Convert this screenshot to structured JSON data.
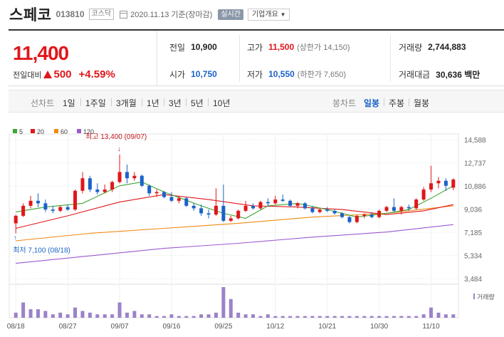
{
  "header": {
    "name": "스페코",
    "code": "013810",
    "market": "코스닥",
    "date": "2020.11.13 기준(장마감)",
    "realtime_label": "실시간",
    "overview_label": "기업개요"
  },
  "quote": {
    "price": "11,400",
    "change_label": "전일대비",
    "change_amount": "500",
    "change_percent": "+4.59%",
    "prev_label": "전일",
    "prev": "10,900",
    "open_label": "시가",
    "open": "10,750",
    "high_label": "고가",
    "high": "11,500",
    "upper_limit": "(상한가 14,150)",
    "low_label": "저가",
    "low": "10,550",
    "lower_limit": "(하한가 7,650)",
    "volume_label": "거래량",
    "volume": "2,744,883",
    "value_label": "거래대금",
    "value": "30,636 백만"
  },
  "periods": {
    "line_label": "선차트",
    "line_items": [
      "1일",
      "1주일",
      "3개월",
      "1년",
      "3년",
      "5년",
      "10년"
    ],
    "candle_label": "봉차트",
    "candle_items": [
      "일봉",
      "주봉",
      "월봉"
    ],
    "candle_active": "일봉"
  },
  "colors": {
    "up": "#e0171b",
    "down": "#1a62c8",
    "ma5": "#3fa535",
    "ma20": "#e0171b",
    "ma60": "#f08a12",
    "ma120": "#9b59d0",
    "volume": "#9b82c8"
  },
  "chart_data": {
    "type": "candlestick",
    "legend": [
      "5",
      "20",
      "60",
      "120"
    ],
    "y_ticks": [
      "14,588",
      "12,737",
      "10,886",
      "9,036",
      "7,185",
      "5,334",
      "3,484"
    ],
    "ylim": [
      3484,
      14588
    ],
    "x_labels": [
      "08/18",
      "08/27",
      "09/07",
      "09/16",
      "09/25",
      "10/12",
      "10/21",
      "10/30",
      "11/10"
    ],
    "x_label_index": [
      0,
      7,
      14,
      21,
      28,
      35,
      42,
      49,
      56
    ],
    "high_annotation": "최고 13,400 (09/07)",
    "high_index": 14,
    "high_value": 13400,
    "low_annotation": "최저 7,100 (08/18)",
    "low_index": 0,
    "low_value": 7100,
    "volume_label": "거래량",
    "candles": [
      {
        "o": 7900,
        "h": 8600,
        "l": 7100,
        "c": 8500
      },
      {
        "o": 8500,
        "h": 9500,
        "l": 8400,
        "c": 9300
      },
      {
        "o": 9300,
        "h": 10100,
        "l": 9100,
        "c": 9700
      },
      {
        "o": 9700,
        "h": 10300,
        "l": 9200,
        "c": 9500
      },
      {
        "o": 9500,
        "h": 9800,
        "l": 8800,
        "c": 9000
      },
      {
        "o": 9000,
        "h": 9300,
        "l": 8700,
        "c": 8900
      },
      {
        "o": 8900,
        "h": 9300,
        "l": 8800,
        "c": 9200
      },
      {
        "o": 9200,
        "h": 9400,
        "l": 8900,
        "c": 9000
      },
      {
        "o": 9000,
        "h": 10600,
        "l": 8900,
        "c": 10500
      },
      {
        "o": 10500,
        "h": 12000,
        "l": 10300,
        "c": 11500
      },
      {
        "o": 11500,
        "h": 11700,
        "l": 10400,
        "c": 10600
      },
      {
        "o": 10600,
        "h": 11100,
        "l": 10200,
        "c": 10400
      },
      {
        "o": 10400,
        "h": 11000,
        "l": 10300,
        "c": 10600
      },
      {
        "o": 10600,
        "h": 11300,
        "l": 10400,
        "c": 11200
      },
      {
        "o": 11200,
        "h": 13400,
        "l": 11100,
        "c": 12000
      },
      {
        "o": 12000,
        "h": 12600,
        "l": 11100,
        "c": 11500
      },
      {
        "o": 11500,
        "h": 12000,
        "l": 11300,
        "c": 11700
      },
      {
        "o": 11700,
        "h": 11800,
        "l": 10800,
        "c": 10900
      },
      {
        "o": 10900,
        "h": 11000,
        "l": 10100,
        "c": 10300
      },
      {
        "o": 10300,
        "h": 10600,
        "l": 10000,
        "c": 10400
      },
      {
        "o": 10400,
        "h": 10500,
        "l": 9900,
        "c": 10000
      },
      {
        "o": 10000,
        "h": 10400,
        "l": 9600,
        "c": 9700
      },
      {
        "o": 9700,
        "h": 10100,
        "l": 9500,
        "c": 9900
      },
      {
        "o": 9900,
        "h": 10000,
        "l": 9200,
        "c": 9300
      },
      {
        "o": 9300,
        "h": 9500,
        "l": 8900,
        "c": 9100
      },
      {
        "o": 9100,
        "h": 9400,
        "l": 8500,
        "c": 8700
      },
      {
        "o": 8700,
        "h": 9000,
        "l": 8300,
        "c": 8600
      },
      {
        "o": 8600,
        "h": 10700,
        "l": 8500,
        "c": 9300
      },
      {
        "o": 9300,
        "h": 11000,
        "l": 8000,
        "c": 8100
      },
      {
        "o": 8100,
        "h": 8500,
        "l": 8000,
        "c": 8300
      },
      {
        "o": 8300,
        "h": 9000,
        "l": 8200,
        "c": 8900
      },
      {
        "o": 8900,
        "h": 9700,
        "l": 8800,
        "c": 9300
      },
      {
        "o": 9300,
        "h": 9500,
        "l": 9000,
        "c": 9100
      },
      {
        "o": 9100,
        "h": 9700,
        "l": 9000,
        "c": 9600
      },
      {
        "o": 9600,
        "h": 9900,
        "l": 9300,
        "c": 9500
      },
      {
        "o": 9500,
        "h": 10100,
        "l": 9400,
        "c": 9800
      },
      {
        "o": 9800,
        "h": 10200,
        "l": 9600,
        "c": 9700
      },
      {
        "o": 9700,
        "h": 9800,
        "l": 9200,
        "c": 9300
      },
      {
        "o": 9300,
        "h": 9600,
        "l": 9100,
        "c": 9500
      },
      {
        "o": 9500,
        "h": 9600,
        "l": 9000,
        "c": 9100
      },
      {
        "o": 9100,
        "h": 9300,
        "l": 8700,
        "c": 8800
      },
      {
        "o": 8800,
        "h": 9100,
        "l": 8700,
        "c": 9000
      },
      {
        "o": 9000,
        "h": 9200,
        "l": 8800,
        "c": 8900
      },
      {
        "o": 8900,
        "h": 9000,
        "l": 8600,
        "c": 8700
      },
      {
        "o": 8700,
        "h": 8800,
        "l": 8300,
        "c": 8400
      },
      {
        "o": 8400,
        "h": 8500,
        "l": 7900,
        "c": 8000
      },
      {
        "o": 8000,
        "h": 8600,
        "l": 7900,
        "c": 8500
      },
      {
        "o": 8500,
        "h": 8700,
        "l": 8300,
        "c": 8600
      },
      {
        "o": 8600,
        "h": 8800,
        "l": 8300,
        "c": 8400
      },
      {
        "o": 8400,
        "h": 9000,
        "l": 8300,
        "c": 8900
      },
      {
        "o": 8900,
        "h": 9300,
        "l": 8800,
        "c": 9200
      },
      {
        "o": 9200,
        "h": 9900,
        "l": 8800,
        "c": 8900
      },
      {
        "o": 8900,
        "h": 9300,
        "l": 8600,
        "c": 9200
      },
      {
        "o": 9200,
        "h": 9400,
        "l": 8900,
        "c": 9100
      },
      {
        "o": 9100,
        "h": 9900,
        "l": 9000,
        "c": 9800
      },
      {
        "o": 9800,
        "h": 10800,
        "l": 9700,
        "c": 10600
      },
      {
        "o": 10600,
        "h": 12500,
        "l": 10400,
        "c": 11100
      },
      {
        "o": 11100,
        "h": 11600,
        "l": 10700,
        "c": 11300
      },
      {
        "o": 11300,
        "h": 11500,
        "l": 10500,
        "c": 10900
      },
      {
        "o": 10750,
        "h": 11500,
        "l": 10550,
        "c": 11400
      }
    ],
    "volume": [
      3,
      9,
      5,
      5,
      4,
      2,
      3,
      2,
      6,
      4,
      3,
      2,
      2,
      2,
      9,
      3,
      4,
      2,
      2,
      1,
      1,
      2,
      1,
      1,
      1,
      2,
      2,
      3,
      18,
      11,
      3,
      2,
      2,
      1,
      2,
      1,
      1,
      1,
      1,
      1,
      1,
      1,
      1,
      1,
      1,
      1,
      1,
      1,
      1,
      1,
      1,
      1,
      1,
      1,
      1,
      2,
      6,
      3,
      2,
      2
    ],
    "ma": {
      "ma5": {
        "start": 8800,
        "points": [
          [
            0,
            8800
          ],
          [
            4,
            9200
          ],
          [
            9,
            9500
          ],
          [
            14,
            10900
          ],
          [
            17,
            11200
          ],
          [
            20,
            10400
          ],
          [
            25,
            9300
          ],
          [
            28,
            8700
          ],
          [
            31,
            8300
          ],
          [
            34,
            9300
          ],
          [
            38,
            9500
          ],
          [
            42,
            9000
          ],
          [
            46,
            8400
          ],
          [
            50,
            8700
          ],
          [
            53,
            9000
          ],
          [
            56,
            9900
          ],
          [
            59,
            10900
          ]
        ]
      },
      "ma20": {
        "points": [
          [
            0,
            7500
          ],
          [
            7,
            8500
          ],
          [
            14,
            9600
          ],
          [
            20,
            10200
          ],
          [
            26,
            9800
          ],
          [
            32,
            9300
          ],
          [
            38,
            9200
          ],
          [
            44,
            9000
          ],
          [
            50,
            8600
          ],
          [
            55,
            8900
          ],
          [
            59,
            9400
          ]
        ]
      },
      "ma60": {
        "points": [
          [
            0,
            6500
          ],
          [
            10,
            7100
          ],
          [
            20,
            7500
          ],
          [
            30,
            7900
          ],
          [
            40,
            8400
          ],
          [
            50,
            8700
          ],
          [
            59,
            9300
          ]
        ]
      },
      "ma120": {
        "points": [
          [
            0,
            4700
          ],
          [
            10,
            5300
          ],
          [
            20,
            5900
          ],
          [
            30,
            6300
          ],
          [
            40,
            6800
          ],
          [
            50,
            7200
          ],
          [
            59,
            7800
          ]
        ]
      }
    }
  }
}
